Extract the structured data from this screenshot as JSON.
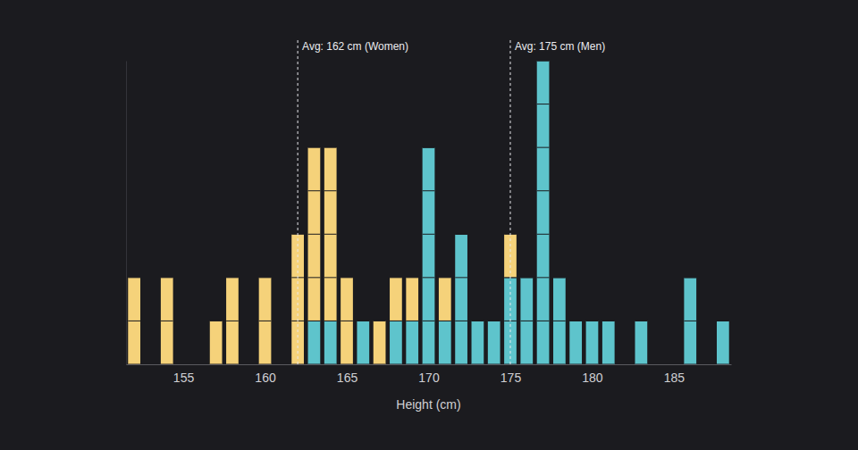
{
  "chart_data": {
    "type": "bar",
    "stacked": true,
    "xlabel": "Height (cm)",
    "x": [
      152,
      154,
      157,
      158,
      160,
      162,
      163,
      164,
      165,
      166,
      167,
      168,
      169,
      170,
      171,
      172,
      173,
      174,
      175,
      176,
      177,
      178,
      179,
      180,
      181,
      183,
      186,
      188
    ],
    "series": [
      {
        "color": "#5ec4cc",
        "values": [
          0,
          0,
          0,
          0,
          0,
          0,
          1,
          1,
          0,
          1,
          0,
          1,
          1,
          5,
          1,
          3,
          1,
          1,
          2,
          2,
          7,
          2,
          1,
          1,
          1,
          1,
          2,
          1
        ]
      },
      {
        "color": "#f5d27a",
        "values": [
          2,
          2,
          1,
          2,
          2,
          3,
          4,
          4,
          2,
          0,
          1,
          1,
          1,
          0,
          1,
          0,
          0,
          0,
          1,
          0,
          0,
          0,
          0,
          0,
          0,
          0,
          0,
          0
        ]
      }
    ],
    "xlim": [
      151.5,
      188.5
    ],
    "xticks": [
      155,
      160,
      165,
      170,
      175,
      180,
      185
    ],
    "ylim": [
      0,
      7
    ],
    "tick_labels": "x",
    "grid": false,
    "annotations": [
      {
        "x": 162,
        "text": "Avg: 162 cm (Women)"
      },
      {
        "x": 175,
        "text": "Avg: 175 cm (Men)"
      }
    ]
  }
}
